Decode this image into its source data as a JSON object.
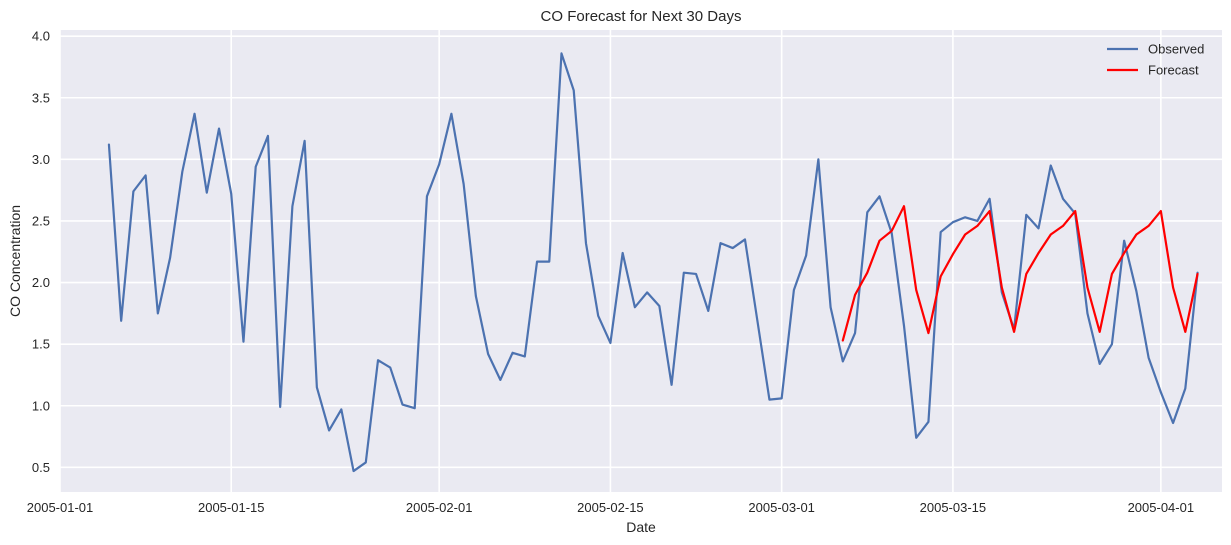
{
  "chart_data": {
    "type": "line",
    "title": "CO Forecast for Next 30 Days",
    "xlabel": "Date",
    "ylabel": "CO Concentration",
    "x_axis_type": "date",
    "xlim": [
      "2005-01-01",
      "2005-04-06"
    ],
    "ylim": [
      0.3,
      4.05
    ],
    "grid": true,
    "legend_position": "top-right",
    "x_ticks": [
      {
        "value": "2005-01-01",
        "label": "2005-01-01"
      },
      {
        "value": "2005-01-15",
        "label": "2005-01-15"
      },
      {
        "value": "2005-02-01",
        "label": "2005-02-01"
      },
      {
        "value": "2005-02-15",
        "label": "2005-02-15"
      },
      {
        "value": "2005-03-01",
        "label": "2005-03-01"
      },
      {
        "value": "2005-03-15",
        "label": "2005-03-15"
      },
      {
        "value": "2005-04-01",
        "label": "2005-04-01"
      }
    ],
    "y_ticks": [
      {
        "value": 0.5,
        "label": "0.5"
      },
      {
        "value": 1.0,
        "label": "1.0"
      },
      {
        "value": 1.5,
        "label": "1.5"
      },
      {
        "value": 2.0,
        "label": "2.0"
      },
      {
        "value": 2.5,
        "label": "2.5"
      },
      {
        "value": 3.0,
        "label": "3.0"
      },
      {
        "value": 3.5,
        "label": "3.5"
      },
      {
        "value": 4.0,
        "label": "4.0"
      }
    ],
    "series": [
      {
        "name": "Observed",
        "color": "#4c72b0",
        "x": [
          "2005-01-05",
          "2005-01-06",
          "2005-01-07",
          "2005-01-08",
          "2005-01-09",
          "2005-01-10",
          "2005-01-11",
          "2005-01-12",
          "2005-01-13",
          "2005-01-14",
          "2005-01-15",
          "2005-01-16",
          "2005-01-17",
          "2005-01-18",
          "2005-01-19",
          "2005-01-20",
          "2005-01-21",
          "2005-01-22",
          "2005-01-23",
          "2005-01-24",
          "2005-01-25",
          "2005-01-26",
          "2005-01-27",
          "2005-01-28",
          "2005-01-29",
          "2005-01-30",
          "2005-01-31",
          "2005-02-01",
          "2005-02-02",
          "2005-02-03",
          "2005-02-04",
          "2005-02-05",
          "2005-02-06",
          "2005-02-07",
          "2005-02-08",
          "2005-02-09",
          "2005-02-10",
          "2005-02-11",
          "2005-02-12",
          "2005-02-13",
          "2005-02-14",
          "2005-02-15",
          "2005-02-16",
          "2005-02-17",
          "2005-02-18",
          "2005-02-19",
          "2005-02-20",
          "2005-02-21",
          "2005-02-22",
          "2005-02-23",
          "2005-02-24",
          "2005-02-25",
          "2005-02-26",
          "2005-02-27",
          "2005-02-28",
          "2005-03-01",
          "2005-03-02",
          "2005-03-03",
          "2005-03-04",
          "2005-03-05",
          "2005-03-06",
          "2005-03-07",
          "2005-03-08",
          "2005-03-09",
          "2005-03-10",
          "2005-03-11",
          "2005-03-12",
          "2005-03-13",
          "2005-03-14",
          "2005-03-15",
          "2005-03-16",
          "2005-03-17",
          "2005-03-18",
          "2005-03-19",
          "2005-03-20",
          "2005-03-21",
          "2005-03-22",
          "2005-03-23",
          "2005-03-24",
          "2005-03-25",
          "2005-03-26",
          "2005-03-27",
          "2005-03-28",
          "2005-03-29",
          "2005-03-30",
          "2005-03-31",
          "2005-04-01",
          "2005-04-02",
          "2005-04-03",
          "2005-04-04"
        ],
        "values": [
          3.12,
          1.69,
          2.74,
          2.87,
          1.75,
          2.2,
          2.9,
          3.37,
          2.73,
          3.25,
          2.72,
          1.52,
          2.94,
          3.19,
          0.99,
          2.62,
          3.15,
          1.15,
          0.8,
          0.97,
          0.47,
          0.54,
          1.37,
          1.31,
          1.01,
          0.98,
          2.7,
          2.96,
          3.37,
          2.8,
          1.89,
          1.42,
          1.21,
          1.43,
          1.4,
          2.17,
          2.17,
          3.86,
          3.56,
          2.32,
          1.73,
          1.51,
          2.24,
          1.8,
          1.92,
          1.81,
          1.17,
          2.08,
          2.07,
          1.77,
          2.32,
          2.28,
          2.35,
          1.7,
          1.05,
          1.06,
          1.94,
          2.22,
          3.0,
          1.8,
          1.36,
          1.59,
          2.57,
          2.7,
          2.4,
          1.65,
          0.74,
          0.87,
          2.41,
          2.49,
          2.53,
          2.5,
          2.68,
          1.92,
          1.62,
          2.55,
          2.44,
          2.95,
          2.68,
          2.56,
          1.75,
          1.34,
          1.5,
          2.34,
          1.93,
          1.39,
          1.11,
          0.86,
          1.14,
          2.08
        ]
      },
      {
        "name": "Forecast",
        "color": "#ff0000",
        "x": [
          "2005-03-06",
          "2005-03-07",
          "2005-03-08",
          "2005-03-09",
          "2005-03-10",
          "2005-03-11",
          "2005-03-12",
          "2005-03-13",
          "2005-03-14",
          "2005-03-15",
          "2005-03-16",
          "2005-03-17",
          "2005-03-18",
          "2005-03-19",
          "2005-03-20",
          "2005-03-21",
          "2005-03-22",
          "2005-03-23",
          "2005-03-24",
          "2005-03-25",
          "2005-03-26",
          "2005-03-27",
          "2005-03-28",
          "2005-03-29",
          "2005-03-30",
          "2005-03-31",
          "2005-04-01",
          "2005-04-02",
          "2005-04-03",
          "2005-04-04"
        ],
        "values": [
          1.53,
          1.9,
          2.08,
          2.34,
          2.42,
          2.62,
          1.94,
          1.59,
          2.05,
          2.23,
          2.39,
          2.46,
          2.58,
          1.96,
          1.6,
          2.07,
          2.24,
          2.39,
          2.46,
          2.58,
          1.96,
          1.6,
          2.07,
          2.24,
          2.39,
          2.46,
          2.58,
          1.96,
          1.6,
          2.07
        ]
      }
    ]
  }
}
